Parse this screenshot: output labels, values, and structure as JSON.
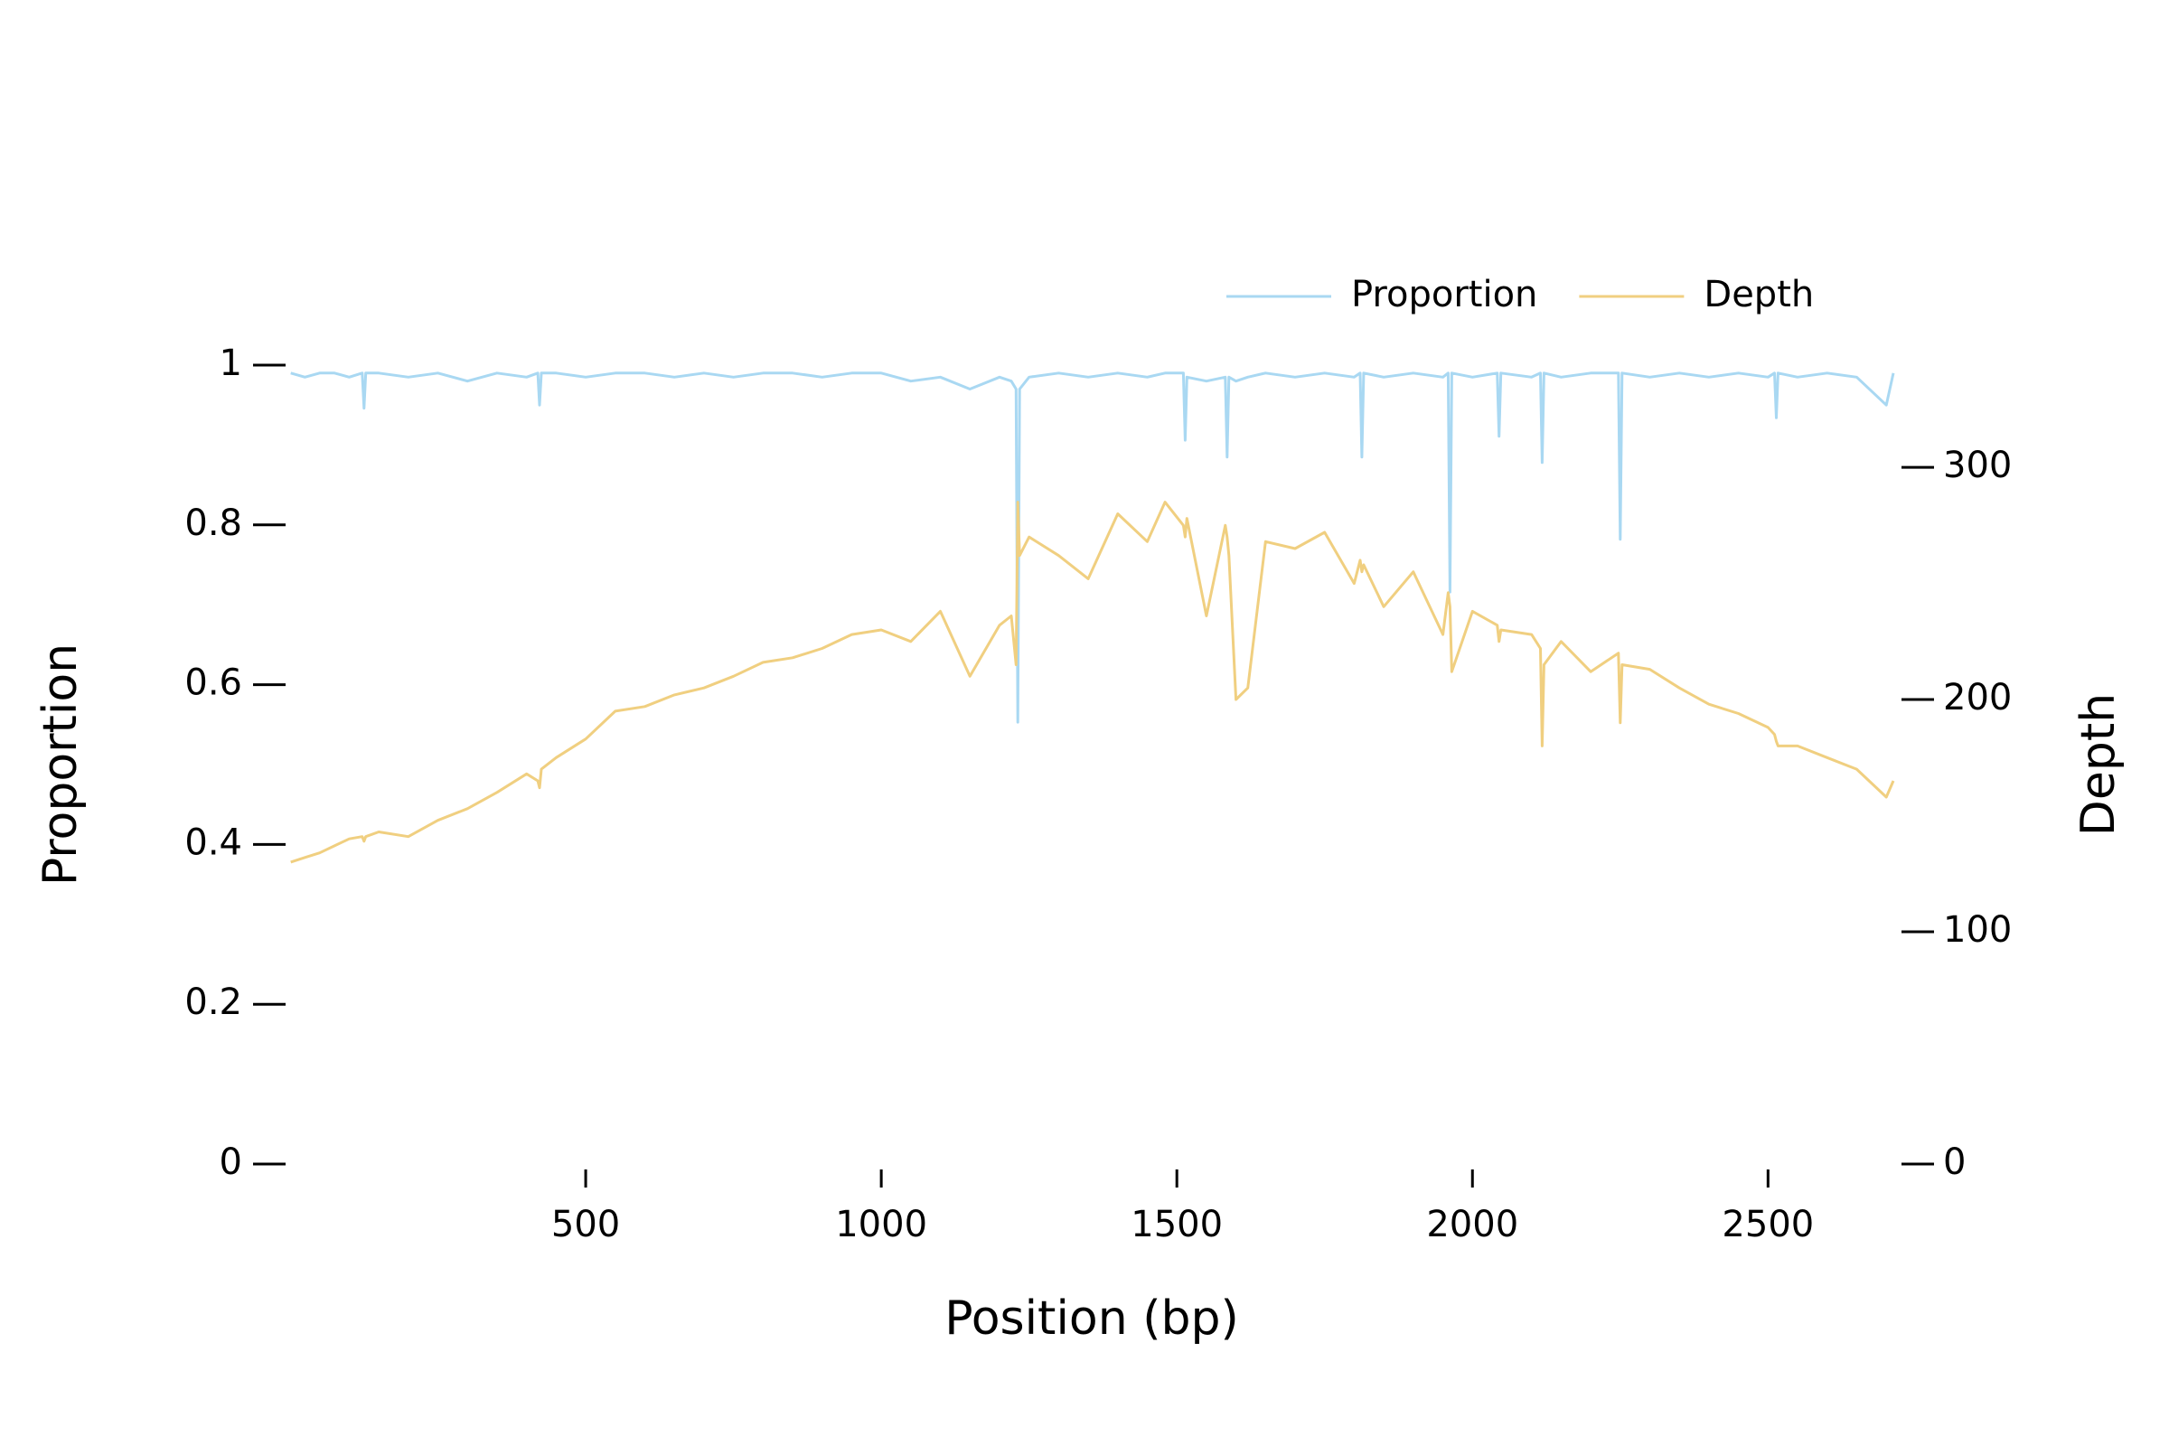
{
  "chart_data": {
    "type": "line",
    "x_label": "Position (bp)",
    "y_label": "Proportion",
    "y2_label": "Depth",
    "x": [
      1,
      25,
      50,
      75,
      100,
      122,
      125,
      128,
      150,
      200,
      250,
      300,
      350,
      400,
      419,
      422,
      425,
      450,
      500,
      550,
      600,
      650,
      700,
      750,
      800,
      850,
      900,
      950,
      1000,
      1050,
      1100,
      1150,
      1200,
      1220,
      1228,
      1231,
      1234,
      1250,
      1300,
      1350,
      1400,
      1450,
      1480,
      1511,
      1514,
      1517,
      1550,
      1582,
      1585,
      1588,
      1600,
      1620,
      1650,
      1700,
      1750,
      1800,
      1810,
      1813,
      1816,
      1850,
      1900,
      1950,
      1959,
      1962,
      1965,
      2000,
      2042,
      2045,
      2048,
      2100,
      2115,
      2118,
      2121,
      2150,
      2200,
      2247,
      2250,
      2253,
      2300,
      2350,
      2400,
      2450,
      2500,
      2511,
      2514,
      2517,
      2550,
      2600,
      2650,
      2700,
      2712
    ],
    "series": [
      {
        "name": "Proportion",
        "color": "#a9d8f2",
        "axis": "y",
        "values": [
          0.99,
          0.985,
          0.99,
          0.99,
          0.985,
          0.99,
          0.946,
          0.99,
          0.99,
          0.985,
          0.99,
          0.98,
          0.99,
          0.985,
          0.99,
          0.95,
          0.99,
          0.99,
          0.985,
          0.99,
          0.99,
          0.985,
          0.99,
          0.985,
          0.99,
          0.99,
          0.985,
          0.99,
          0.99,
          0.98,
          0.985,
          0.97,
          0.985,
          0.98,
          0.97,
          0.553,
          0.97,
          0.985,
          0.99,
          0.985,
          0.99,
          0.985,
          0.99,
          0.99,
          0.906,
          0.985,
          0.98,
          0.985,
          0.885,
          0.985,
          0.98,
          0.985,
          0.99,
          0.985,
          0.99,
          0.985,
          0.99,
          0.885,
          0.99,
          0.985,
          0.99,
          0.985,
          0.99,
          0.716,
          0.99,
          0.985,
          0.99,
          0.911,
          0.99,
          0.985,
          0.99,
          0.878,
          0.99,
          0.985,
          0.99,
          0.99,
          0.782,
          0.99,
          0.985,
          0.99,
          0.985,
          0.99,
          0.985,
          0.99,
          0.934,
          0.99,
          0.985,
          0.99,
          0.985,
          0.95,
          0.99
        ]
      },
      {
        "name": "Depth",
        "color": "#f0cf80",
        "axis": "y2",
        "values": [
          130,
          132,
          134,
          137,
          140,
          141,
          139,
          141,
          143,
          141,
          148,
          153,
          160,
          168,
          165,
          162,
          170,
          175,
          183,
          195,
          197,
          202,
          205,
          210,
          216,
          218,
          222,
          228,
          230,
          225,
          238,
          210,
          232,
          236,
          215,
          285,
          262,
          270,
          262,
          252,
          280,
          268,
          285,
          275,
          270,
          278,
          236,
          275,
          270,
          262,
          200,
          205,
          268,
          265,
          272,
          250,
          260,
          255,
          258,
          240,
          255,
          228,
          246,
          240,
          212,
          238,
          232,
          225,
          230,
          228,
          222,
          180,
          215,
          225,
          212,
          220,
          190,
          215,
          213,
          205,
          198,
          194,
          188,
          185,
          182,
          180,
          180,
          175,
          170,
          158,
          165
        ]
      }
    ],
    "xlim": [
      0,
      2712
    ],
    "xticks": [
      500,
      1000,
      1500,
      2000,
      2500
    ],
    "ylim": [
      0,
      1
    ],
    "yticks": [
      0,
      0.2,
      0.4,
      0.6,
      0.8,
      1
    ],
    "y2lim": [
      0,
      344
    ],
    "y2ticks": [
      0,
      100,
      200,
      300
    ],
    "legend": "upper right",
    "grid": false
  }
}
